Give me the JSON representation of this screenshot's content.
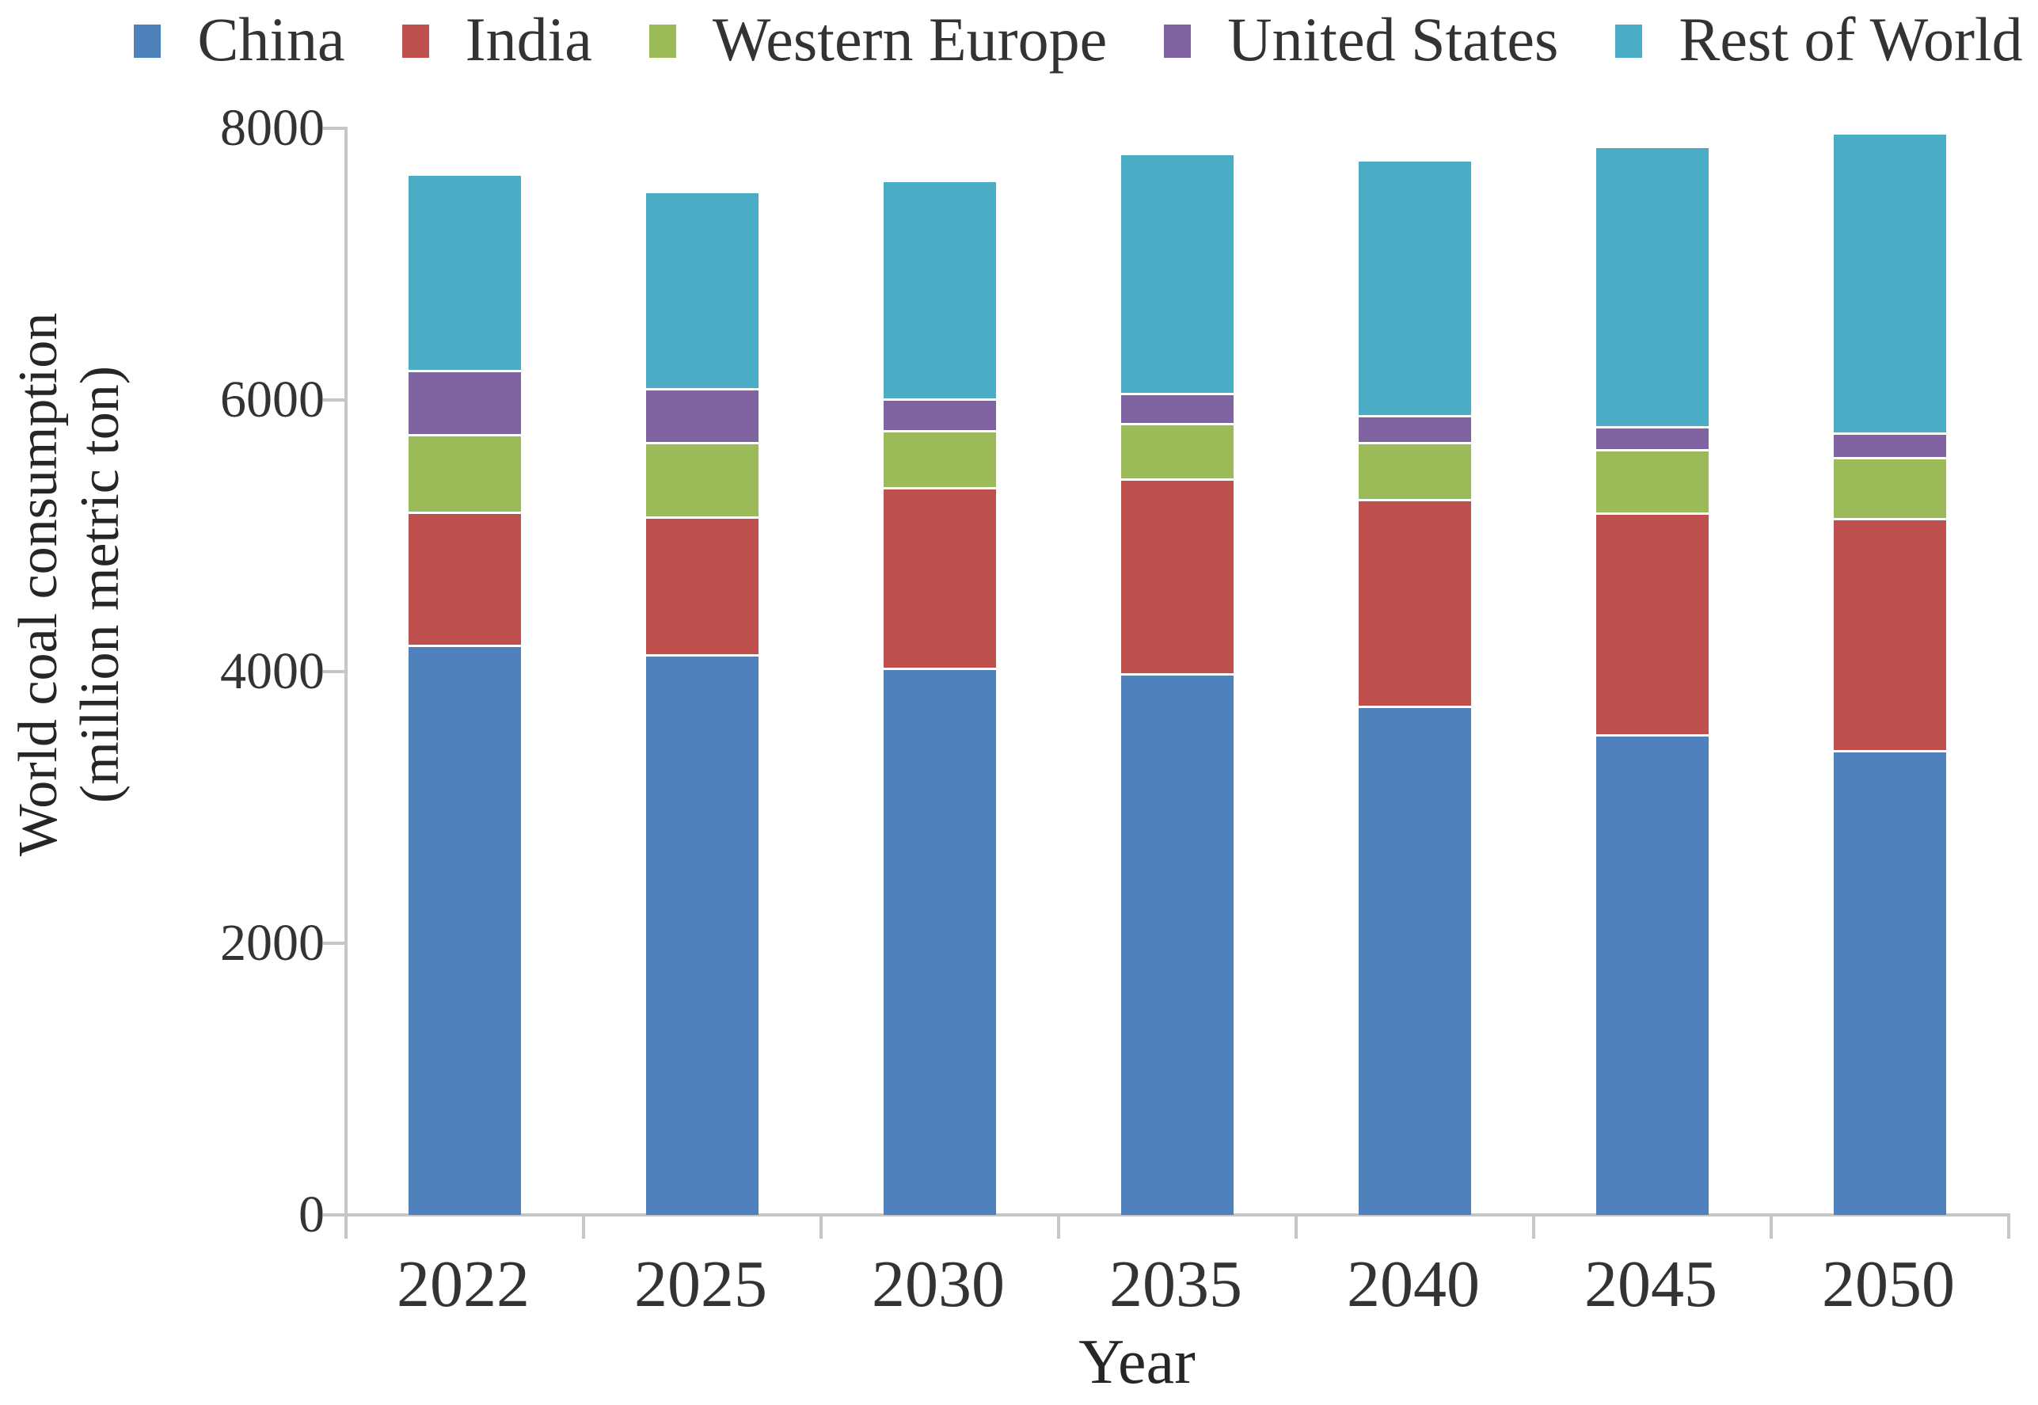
{
  "y_axis": {
    "title_line1": "World coal consumption",
    "title_line2": "(million metric ton)",
    "ticks": [
      0,
      2000,
      4000,
      6000,
      8000
    ]
  },
  "x_axis": {
    "title": "Year"
  },
  "chart_data": {
    "type": "bar",
    "stacked": true,
    "title": "",
    "unit": "million metric ton",
    "xlabel": "Year",
    "ylabel": "World coal consumption (million metric ton)",
    "ylim": [
      0,
      8000
    ],
    "yticks": [
      0,
      2000,
      4000,
      6000,
      8000
    ],
    "grid": false,
    "legend_position": "top",
    "categories": [
      "2022",
      "2025",
      "2030",
      "2035",
      "2040",
      "2045",
      "2050"
    ],
    "series": [
      {
        "name": "China",
        "color": "#4F81BD",
        "values": [
          4200,
          4130,
          4030,
          3990,
          3750,
          3540,
          3420
        ]
      },
      {
        "name": "India",
        "color": "#C0504D",
        "values": [
          980,
          1010,
          1330,
          1430,
          1520,
          1630,
          1710
        ]
      },
      {
        "name": "Western Europe",
        "color": "#9BBB59",
        "values": [
          570,
          550,
          420,
          410,
          420,
          470,
          450
        ]
      },
      {
        "name": "United States",
        "color": "#8064A2",
        "values": [
          470,
          400,
          230,
          220,
          200,
          170,
          180
        ]
      },
      {
        "name": "Rest of World",
        "color": "#4BACC6",
        "values": [
          1450,
          1450,
          1610,
          1770,
          1880,
          2060,
          2210
        ]
      }
    ],
    "totals": [
      7670,
      7540,
      7620,
      7820,
      7770,
      7870,
      7970
    ]
  }
}
